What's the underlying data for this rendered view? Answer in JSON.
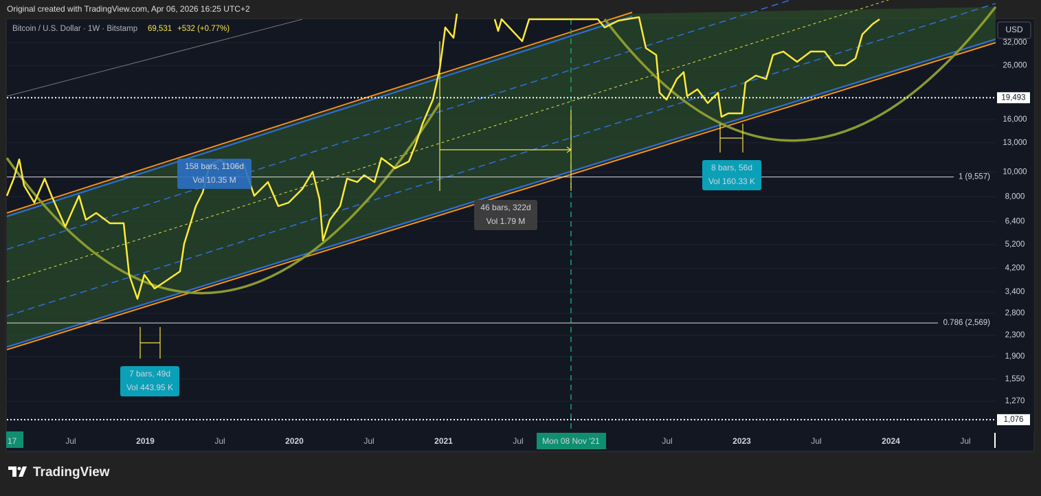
{
  "header": {
    "credit": "Original created with TradingView.com, Apr 06, 2026 16:25 UTC+2",
    "symbol": "Bitcoin / U.S. Dollar · 1W · Bitstamp",
    "price": "69,531",
    "change": "+532 (+0.77%)"
  },
  "currency": "USD",
  "chart_data": {
    "type": "line",
    "log": true,
    "ylim": [
      968,
      39500
    ],
    "yticks": [
      {
        "value": 32000,
        "label": "32,000"
      },
      {
        "value": 26000,
        "label": "26,000"
      },
      {
        "value": 16000,
        "label": "16,000"
      },
      {
        "value": 13000,
        "label": "13,000"
      },
      {
        "value": 10000,
        "label": "10,000"
      },
      {
        "value": 8000,
        "label": "8,000"
      },
      {
        "value": 6400,
        "label": "6,400"
      },
      {
        "value": 5200,
        "label": "5,200"
      },
      {
        "value": 4200,
        "label": "4,200"
      },
      {
        "value": 3400,
        "label": "3,400"
      },
      {
        "value": 2800,
        "label": "2,800"
      },
      {
        "value": 2300,
        "label": "2,300"
      },
      {
        "value": 1900,
        "label": "1,900"
      },
      {
        "value": 1550,
        "label": "1,550"
      },
      {
        "value": 1270,
        "label": "1,270"
      }
    ],
    "categories": [
      "Jul",
      "2019",
      "Jul",
      "2020",
      "Jul",
      "2021",
      "Jul",
      null,
      "Jul",
      "2023",
      "Jul",
      "2024",
      "Jul"
    ],
    "price_labels": [
      {
        "value": 19493,
        "label": "19,493"
      },
      {
        "value": 1076,
        "label": "1,076"
      }
    ],
    "levels": [
      {
        "value": 9557,
        "label": "1 (9,557)"
      },
      {
        "value": 2569,
        "label": "0.786 (2,569)"
      }
    ],
    "cursor_date": "Mon 08 Nov '21",
    "left_edge": "17"
  },
  "annotations": [
    {
      "line1": "158 bars, 1106d",
      "line2": "Vol 10.35 M"
    },
    {
      "line1": "46 bars, 322d",
      "line2": "Vol 1.79 M"
    },
    {
      "line1": "8 bars, 56d",
      "line2": "Vol 160.33 K"
    },
    {
      "line1": "7 bars, 49d",
      "line2": "Vol 443.95 K"
    }
  ],
  "logo": "TradingView"
}
